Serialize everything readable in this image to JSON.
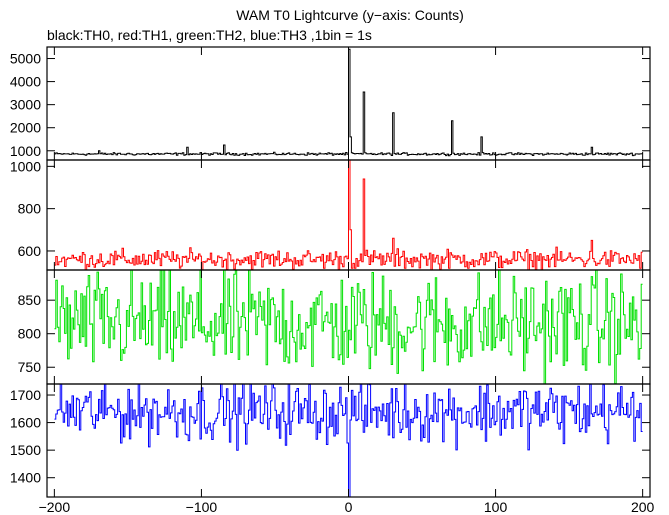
{
  "chart_data": {
    "type": "line",
    "title": "WAM T0 Lightcurve (y−axis: Counts)",
    "subtitle": "black:TH0, red:TH1, green:TH2, blue:TH3 ,1bin = 1s",
    "xlim": [
      -205,
      205
    ],
    "xticks": [
      -200,
      -100,
      0,
      100,
      200
    ],
    "xtick_labels": [
      "−200",
      "−100",
      "0",
      "100",
      "200"
    ],
    "panels": [
      {
        "series": "TH0",
        "color": "#000000",
        "ylim": [
          600,
          5500
        ],
        "yticks": [
          1000,
          2000,
          3000,
          4000,
          5000
        ],
        "ytick_labels": [
          "1000",
          "2000",
          "3000",
          "4000",
          "5000"
        ],
        "baseline": 860,
        "noise": 55,
        "spikes": [
          [
            -170,
            1000
          ],
          [
            -110,
            1150
          ],
          [
            -85,
            1250
          ],
          [
            0,
            5400
          ],
          [
            1,
            1600
          ],
          [
            10,
            3550
          ],
          [
            30,
            2650
          ],
          [
            70,
            2300
          ],
          [
            90,
            1600
          ],
          [
            165,
            1150
          ]
        ]
      },
      {
        "series": "TH1",
        "color": "#ff0000",
        "ylim": [
          510,
          1030
        ],
        "yticks": [
          600,
          800,
          1000
        ],
        "ytick_labels": [
          "600",
          "800",
          "1000"
        ],
        "baseline": 560,
        "noise": 45,
        "spikes": [
          [
            0,
            1030
          ],
          [
            1,
            700
          ],
          [
            10,
            940
          ],
          [
            30,
            660
          ],
          [
            165,
            650
          ]
        ]
      },
      {
        "series": "TH2",
        "color": "#00e000",
        "ylim": [
          725,
          895
        ],
        "yticks": [
          750,
          800,
          850
        ],
        "ytick_labels": [
          "750",
          "800",
          "850"
        ],
        "baseline": 815,
        "noise": 75,
        "spikes": []
      },
      {
        "series": "TH3",
        "color": "#0000ff",
        "ylim": [
          1330,
          1740
        ],
        "yticks": [
          1400,
          1500,
          1600,
          1700
        ],
        "ytick_labels": [
          "1400",
          "1500",
          "1600",
          "1700"
        ],
        "baseline": 1640,
        "noise": 110,
        "spikes": [
          [
            0,
            1330
          ]
        ]
      }
    ]
  }
}
